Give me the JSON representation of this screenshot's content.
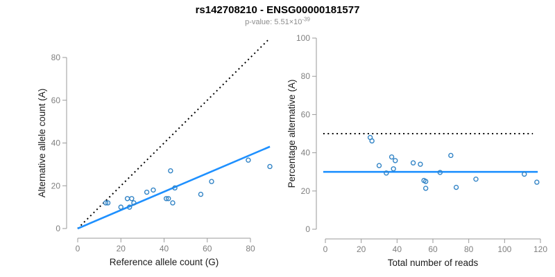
{
  "header": {
    "title": "rs142708210 - ENSG00000181577",
    "pvalue_label": "p-value: ",
    "pvalue_base": "5.51×10",
    "pvalue_exponent": "-39"
  },
  "colors": {
    "title": "#000000",
    "subtitle": "#8c8c8c",
    "axis": "#999999",
    "tick_label": "#7f7f7f",
    "axis_title": "#1a1a1a",
    "identity_line": "#000000",
    "regression_line": "#1E90FF",
    "point_stroke": "#3284C6"
  },
  "chart_data": [
    {
      "id": "allele-counts",
      "type": "scatter",
      "title": "rs142708210 - ENSG00000181577",
      "xlabel": "Reference allele count (G)",
      "ylabel": "Alternative allele count (A)",
      "xlim": [
        0,
        89.5
      ],
      "ylim": [
        0,
        89
      ],
      "xticks": [
        0,
        20,
        40,
        60,
        80
      ],
      "yticks": [
        0,
        20,
        40,
        60,
        80
      ],
      "grid": false,
      "legend_position": "none",
      "points": [
        [
          13,
          12
        ],
        [
          14,
          12
        ],
        [
          20,
          10
        ],
        [
          24,
          10
        ],
        [
          23,
          14
        ],
        [
          25,
          14
        ],
        [
          26,
          12
        ],
        [
          32,
          17
        ],
        [
          35,
          18
        ],
        [
          41,
          14
        ],
        [
          42,
          14
        ],
        [
          44,
          12
        ],
        [
          43,
          27
        ],
        [
          45,
          19
        ],
        [
          57,
          16
        ],
        [
          62,
          22
        ],
        [
          79,
          32
        ],
        [
          89,
          29
        ]
      ],
      "lines": [
        {
          "name": "identity-line",
          "style": "dotted",
          "color": "#000000",
          "from": [
            0,
            0
          ],
          "to": [
            88.5,
            88.5
          ]
        },
        {
          "name": "regression-line",
          "style": "solid",
          "color": "#1E90FF",
          "from": [
            0,
            0
          ],
          "to": [
            89,
            38.3
          ]
        }
      ]
    },
    {
      "id": "percentage-by-coverage",
      "type": "scatter",
      "title": "",
      "xlabel": "Total number of reads",
      "ylabel": "Percentage alternative (A)",
      "xlim": [
        0,
        120
      ],
      "ylim": [
        0,
        100
      ],
      "xticks": [
        0,
        20,
        40,
        60,
        80,
        100,
        120
      ],
      "yticks": [
        0,
        20,
        40,
        60,
        80,
        100
      ],
      "grid": false,
      "legend_position": "none",
      "points": [
        [
          25,
          48
        ],
        [
          26,
          46.2
        ],
        [
          30,
          33.3
        ],
        [
          34,
          29.4
        ],
        [
          37,
          37.8
        ],
        [
          39,
          35.9
        ],
        [
          38,
          31.6
        ],
        [
          49,
          34.7
        ],
        [
          53,
          34
        ],
        [
          55,
          25.5
        ],
        [
          56,
          25
        ],
        [
          56,
          21.4
        ],
        [
          70,
          38.6
        ],
        [
          64,
          29.7
        ],
        [
          73,
          21.9
        ],
        [
          84,
          26.2
        ],
        [
          111,
          28.8
        ],
        [
          118,
          24.6
        ]
      ],
      "lines": [
        {
          "name": "fifty-percent-line",
          "style": "dotted",
          "color": "#000000",
          "from": [
            -1.2,
            50
          ],
          "to": [
            115.8,
            50
          ]
        },
        {
          "name": "mean-percentage-line",
          "style": "solid",
          "color": "#1E90FF",
          "from": [
            -1.2,
            30
          ],
          "to": [
            118.5,
            30
          ]
        }
      ]
    }
  ]
}
